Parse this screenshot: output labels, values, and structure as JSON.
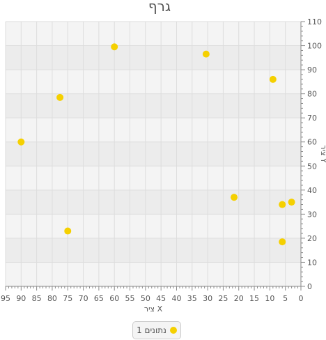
{
  "chart_data": {
    "type": "scatter",
    "title": "גרף",
    "xlabel": "ציר X",
    "ylabel": "ציר Y",
    "xlim": [
      95,
      0
    ],
    "ylim": [
      0,
      110
    ],
    "x_reversed": true,
    "y_axis_side": "right",
    "x_ticks": [
      95,
      90,
      85,
      80,
      75,
      70,
      65,
      60,
      55,
      50,
      45,
      40,
      35,
      30,
      25,
      20,
      15,
      10,
      5,
      0
    ],
    "y_ticks": [
      0,
      10,
      20,
      30,
      40,
      50,
      60,
      70,
      80,
      90,
      100,
      110
    ],
    "grid": true,
    "legend_position": "bottom-center",
    "series": [
      {
        "name": "נתונים 1",
        "color": "#f5d000",
        "points": [
          {
            "x": 60,
            "y": 99.5
          },
          {
            "x": 30.5,
            "y": 96.5
          },
          {
            "x": 9,
            "y": 86
          },
          {
            "x": 77.5,
            "y": 78.5
          },
          {
            "x": 90,
            "y": 60
          },
          {
            "x": 21.5,
            "y": 37
          },
          {
            "x": 3,
            "y": 35
          },
          {
            "x": 6,
            "y": 34
          },
          {
            "x": 75,
            "y": 23
          },
          {
            "x": 6,
            "y": 18.5
          }
        ]
      }
    ]
  }
}
